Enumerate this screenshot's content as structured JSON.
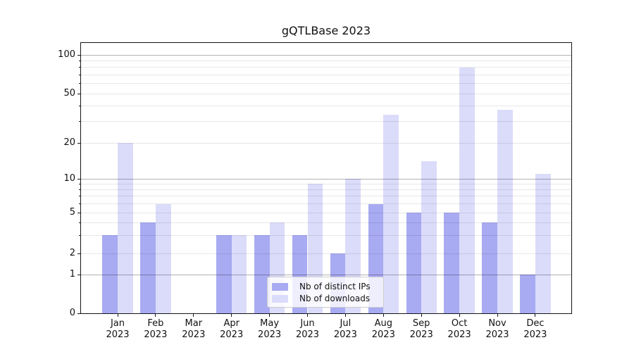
{
  "chart_data": {
    "type": "bar",
    "title": "gQTLBase 2023",
    "categories": [
      "Jan 2023",
      "Feb 2023",
      "Mar 2023",
      "Apr 2023",
      "May 2023",
      "Jun 2023",
      "Jul 2023",
      "Aug 2023",
      "Sep 2023",
      "Oct 2023",
      "Nov 2023",
      "Dec 2023"
    ],
    "series": [
      {
        "name": "Nb of distinct IPs",
        "color": "#a8aaf2",
        "values": [
          3,
          4,
          0,
          3,
          3,
          3,
          2,
          6,
          5,
          5,
          4,
          1
        ]
      },
      {
        "name": "Nb of downloads",
        "color": "#dbdcfa",
        "values": [
          20,
          6,
          0,
          3,
          4,
          9,
          10,
          34,
          14,
          80,
          37,
          11
        ]
      }
    ],
    "yscale": "symlog",
    "y_ticks": [
      0,
      1,
      2,
      5,
      10,
      20,
      50,
      100
    ],
    "ylim": [
      0,
      125
    ],
    "grid": "horizontal",
    "legend_position": "lower center"
  }
}
